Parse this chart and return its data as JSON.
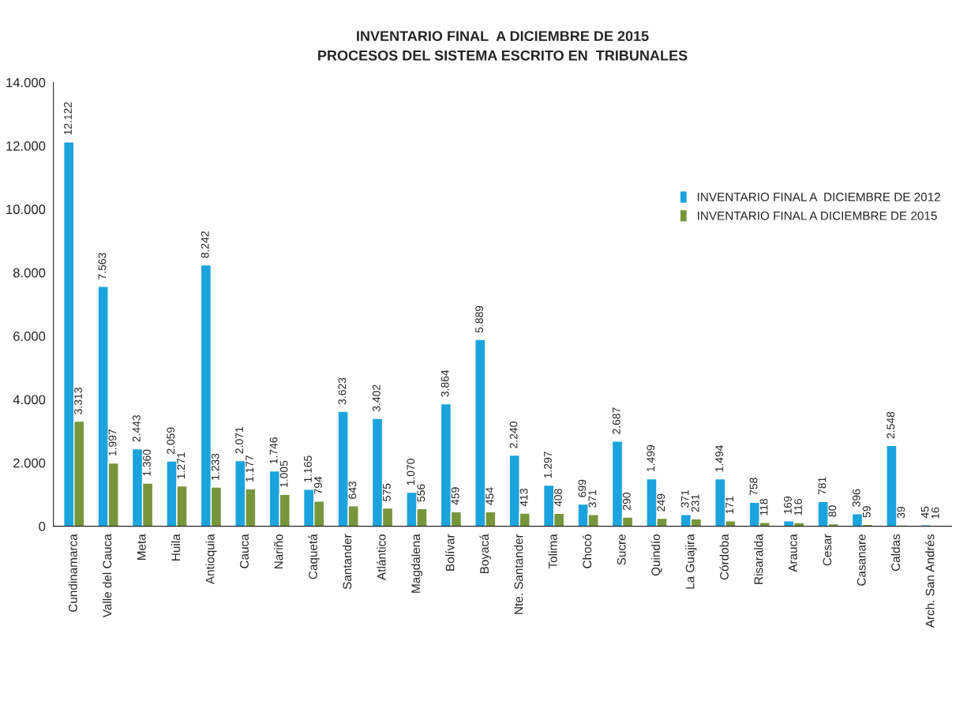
{
  "chart_data": {
    "type": "bar",
    "title": "INVENTARIO FINAL  A DICIEMBRE DE 2015\nPROCESOS DEL SISTEMA ESCRITO EN  TRIBUNALES",
    "categories": [
      "Cundinamarca",
      "Valle del Cauca",
      "Meta",
      "Huila",
      "Antioquia",
      "Cauca",
      "Nariño",
      "Caquetá",
      "Santander",
      "Atlántico",
      "Magdalena",
      "Bolívar",
      "Boyacá",
      "Nte. Santander",
      "Tolima",
      "Chocó",
      "Sucre",
      "Quindío",
      "La Guajira",
      "Córdoba",
      "Risaralda",
      "Arauca",
      "Cesar",
      "Casanare",
      "Caldas",
      "Arch. San Andrés"
    ],
    "series": [
      {
        "name": "INVENTARIO FINAL A  DICIEMBRE DE 2012",
        "color": "#1aa3dc",
        "values": [
          12122,
          7563,
          2443,
          2059,
          8242,
          2071,
          1746,
          1165,
          3623,
          3402,
          1070,
          3864,
          5889,
          2240,
          1297,
          699,
          2687,
          1499,
          371,
          1494,
          758,
          169,
          781,
          396,
          2548,
          45
        ],
        "value_labels": [
          "12.122",
          "7.563",
          "2.443",
          "2.059",
          "8.242",
          "2.071",
          "1.746",
          "1.165",
          "3.623",
          "3.402",
          "1.070",
          "3.864",
          "5.889",
          "2.240",
          "1.297",
          "699",
          "2.687",
          "1.499",
          "371",
          "1.494",
          "758",
          "169",
          "781",
          "396",
          "2.548",
          "45"
        ]
      },
      {
        "name": "INVENTARIO FINAL A DICIEMBRE DE 2015",
        "color": "#77963c",
        "values": [
          3313,
          1997,
          1360,
          1271,
          1233,
          1177,
          1005,
          794,
          643,
          575,
          556,
          459,
          454,
          413,
          408,
          371,
          290,
          249,
          231,
          171,
          118,
          116,
          80,
          59,
          39,
          16
        ],
        "value_labels": [
          "3.313",
          "1.997",
          "1.360",
          "1.271",
          "1.233",
          "1.177",
          "1.005",
          "794",
          "643",
          "575",
          "556",
          "459",
          "454",
          "413",
          "408",
          "371",
          "290",
          "249",
          "231",
          "171",
          "118",
          "116",
          "80",
          "59",
          "39",
          "16"
        ]
      }
    ],
    "ylim": [
      0,
      14000
    ],
    "yticks": [
      {
        "value": 0,
        "label": "0"
      },
      {
        "value": 2000,
        "label": "2.000"
      },
      {
        "value": 4000,
        "label": "4.000"
      },
      {
        "value": 6000,
        "label": "6.000"
      },
      {
        "value": 8000,
        "label": "8.000"
      },
      {
        "value": 10000,
        "label": "10.000"
      },
      {
        "value": 12000,
        "label": "12.000"
      },
      {
        "value": 14000,
        "label": "14.000"
      }
    ],
    "grid": false,
    "legend": "right"
  }
}
